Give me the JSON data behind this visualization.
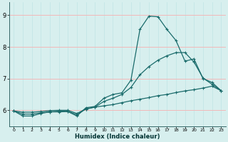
{
  "xlabel": "Humidex (Indice chaleur)",
  "bg_color": "#d7efee",
  "grid_color_h": "#f2b8b8",
  "grid_color_v": "#c0e4e4",
  "line_color": "#1a6b6b",
  "xlim": [
    -0.5,
    23.5
  ],
  "ylim": [
    5.5,
    9.4
  ],
  "xticks": [
    0,
    1,
    2,
    3,
    4,
    5,
    6,
    7,
    8,
    9,
    10,
    11,
    12,
    13,
    14,
    15,
    16,
    17,
    18,
    19,
    20,
    21,
    22,
    23
  ],
  "yticks": [
    6,
    7,
    8,
    9
  ],
  "line1_x": [
    0,
    1,
    2,
    3,
    4,
    5,
    6,
    7,
    8,
    9,
    10,
    11,
    12,
    13,
    14,
    15,
    16,
    17,
    18,
    19,
    20,
    21,
    22,
    23
  ],
  "line1_y": [
    5.98,
    5.82,
    5.82,
    5.9,
    5.95,
    5.95,
    5.96,
    5.82,
    6.08,
    6.12,
    6.38,
    6.5,
    6.55,
    6.95,
    8.55,
    8.97,
    8.95,
    8.55,
    8.2,
    7.55,
    7.62,
    7.0,
    6.88,
    6.62
  ],
  "line2_x": [
    0,
    1,
    2,
    3,
    4,
    5,
    6,
    7,
    8,
    9,
    10,
    11,
    12,
    13,
    14,
    15,
    16,
    17,
    18,
    19,
    20,
    21,
    22,
    23
  ],
  "line2_y": [
    5.98,
    5.88,
    5.88,
    5.92,
    5.95,
    5.97,
    5.97,
    5.86,
    6.04,
    6.1,
    6.28,
    6.38,
    6.5,
    6.72,
    7.12,
    7.38,
    7.58,
    7.72,
    7.82,
    7.82,
    7.52,
    7.02,
    6.82,
    6.62
  ],
  "line3_x": [
    0,
    1,
    2,
    3,
    4,
    5,
    6,
    7,
    8,
    9,
    10,
    11,
    12,
    13,
    14,
    15,
    16,
    17,
    18,
    19,
    20,
    21,
    22,
    23
  ],
  "line3_y": [
    5.98,
    5.94,
    5.94,
    5.96,
    5.99,
    6.0,
    6.0,
    5.9,
    6.04,
    6.1,
    6.14,
    6.18,
    6.24,
    6.3,
    6.35,
    6.4,
    6.46,
    6.5,
    6.56,
    6.61,
    6.65,
    6.7,
    6.76,
    6.62
  ]
}
